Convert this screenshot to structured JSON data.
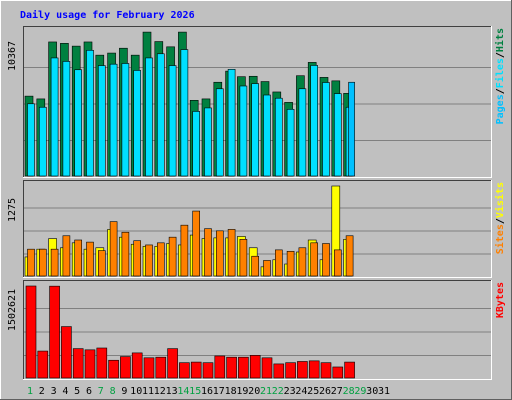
{
  "chart_data": {
    "type": "bar",
    "title": "Daily usage for February 2026",
    "days": [
      "1",
      "2",
      "3",
      "4",
      "5",
      "6",
      "7",
      "8",
      "9",
      "10",
      "11",
      "12",
      "13",
      "14",
      "15",
      "16",
      "17",
      "18",
      "19",
      "20",
      "21",
      "22",
      "23",
      "24",
      "25",
      "26",
      "27",
      "28",
      "29",
      "30",
      "31"
    ],
    "weekend_days": [
      "1",
      "7",
      "8",
      "14",
      "15",
      "21",
      "22",
      "28",
      "29"
    ],
    "panels": [
      {
        "id": "hits-files-pages",
        "ymax_label": "10367",
        "ylim": [
          0,
          10367
        ],
        "grid": true,
        "axis_labels": [
          "Pages",
          "Files",
          "Hits"
        ],
        "series": [
          {
            "name": "Hits",
            "color": "#008040",
            "values": [
              5750,
              5550,
              9650,
              9550,
              9350,
              9650,
              8700,
              8850,
              9200,
              8700,
              10360,
              9680,
              9300,
              10360,
              5450,
              5550,
              6750,
              7550,
              7150,
              7180,
              6800,
              6050,
              5300,
              7220,
              8180,
              7100,
              6850,
              5950,
              null,
              null,
              null
            ]
          },
          {
            "name": "Files",
            "color": "#00e0ff",
            "values": [
              5200,
              4950,
              8500,
              8250,
              7650,
              9050,
              7950,
              8050,
              8100,
              7600,
              8500,
              8800,
              7950,
              9100,
              4650,
              4900,
              6280,
              7680,
              6480,
              6650,
              5830,
              5600,
              4800,
              6280,
              7960,
              6730,
              5930,
              4950,
              null,
              null,
              null
            ]
          },
          {
            "name": "Pages",
            "color": "#00c0ff",
            "values": [
              null,
              null,
              null,
              null,
              null,
              null,
              null,
              null,
              null,
              null,
              null,
              null,
              null,
              null,
              null,
              null,
              null,
              null,
              null,
              null,
              null,
              null,
              null,
              null,
              null,
              null,
              null,
              6750,
              null,
              null,
              null
            ]
          }
        ]
      },
      {
        "id": "visits-sites",
        "ymax_label": "1275",
        "ylim": [
          0,
          1275
        ],
        "grid": true,
        "axis_labels": [
          "Sites",
          "Visits"
        ],
        "series": [
          {
            "name": "Visits",
            "color": "#ffff00",
            "values": [
              270,
              380,
              530,
              400,
              470,
              380,
              400,
              660,
              550,
              450,
              420,
              420,
              460,
              440,
              580,
              530,
              540,
              540,
              560,
              400,
              130,
              230,
              170,
              340,
              510,
              230,
              1275,
              520,
              null,
              null,
              null
            ]
          },
          {
            "name": "Sites",
            "color": "#ff8000",
            "values": [
              380,
              380,
              380,
              570,
              510,
              480,
              360,
              770,
              620,
              500,
              440,
              470,
              550,
              720,
              920,
              670,
              640,
              660,
              520,
              280,
              220,
              370,
              350,
              400,
              470,
              460,
              370,
              570,
              null,
              null,
              null
            ]
          }
        ]
      },
      {
        "id": "kbytes",
        "ymax_label": "1502621",
        "ylim": [
          0,
          1502621
        ],
        "grid": true,
        "axis_labels": [
          "KBytes"
        ],
        "series": [
          {
            "name": "KBytes",
            "color": "#ff0000",
            "values": [
              1502621,
              440000,
              1500000,
              840000,
              480000,
              460000,
              490000,
              290000,
              350000,
              410000,
              330000,
              340000,
              480000,
              250000,
              260000,
              250000,
              360000,
              340000,
              340000,
              370000,
              330000,
              230000,
              250000,
              270000,
              280000,
              250000,
              180000,
              260000,
              null,
              null,
              null
            ]
          }
        ]
      }
    ]
  }
}
